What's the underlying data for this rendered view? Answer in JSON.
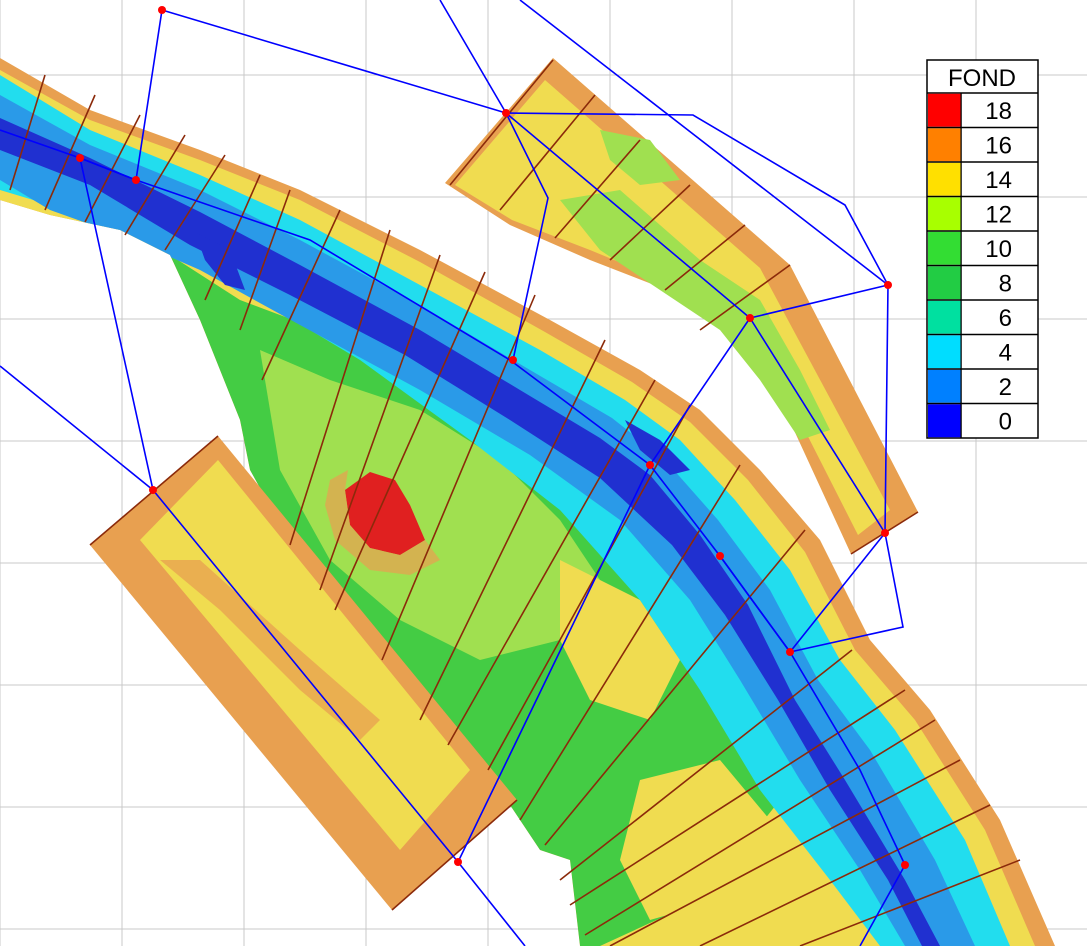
{
  "legend": {
    "title": "FOND",
    "entries": [
      {
        "label": "18",
        "color": "#ff0000"
      },
      {
        "label": "16",
        "color": "#ff8000"
      },
      {
        "label": "14",
        "color": "#ffe000"
      },
      {
        "label": "12",
        "color": "#a8ff00"
      },
      {
        "label": "10",
        "color": "#33dd33"
      },
      {
        "label": "8",
        "color": "#22cc44"
      },
      {
        "label": "6",
        "color": "#00e0a0"
      },
      {
        "label": "4",
        "color": "#00ddff"
      },
      {
        "label": "2",
        "color": "#0080ff"
      },
      {
        "label": "0",
        "color": "#0000ff"
      }
    ]
  },
  "colors": {
    "grid": "#c8c8c8",
    "network_line": "#0000ff",
    "node": "#ff0000",
    "profile_line": "#8b2a0a",
    "bank": "#e8a050",
    "shallow": "#f0dc50",
    "mid": "#a0e050",
    "green": "#44cc44",
    "cyan": "#22ddee",
    "channel": "#2a9ae8",
    "deep": "#2030d0",
    "hotspot": "#e02020"
  }
}
